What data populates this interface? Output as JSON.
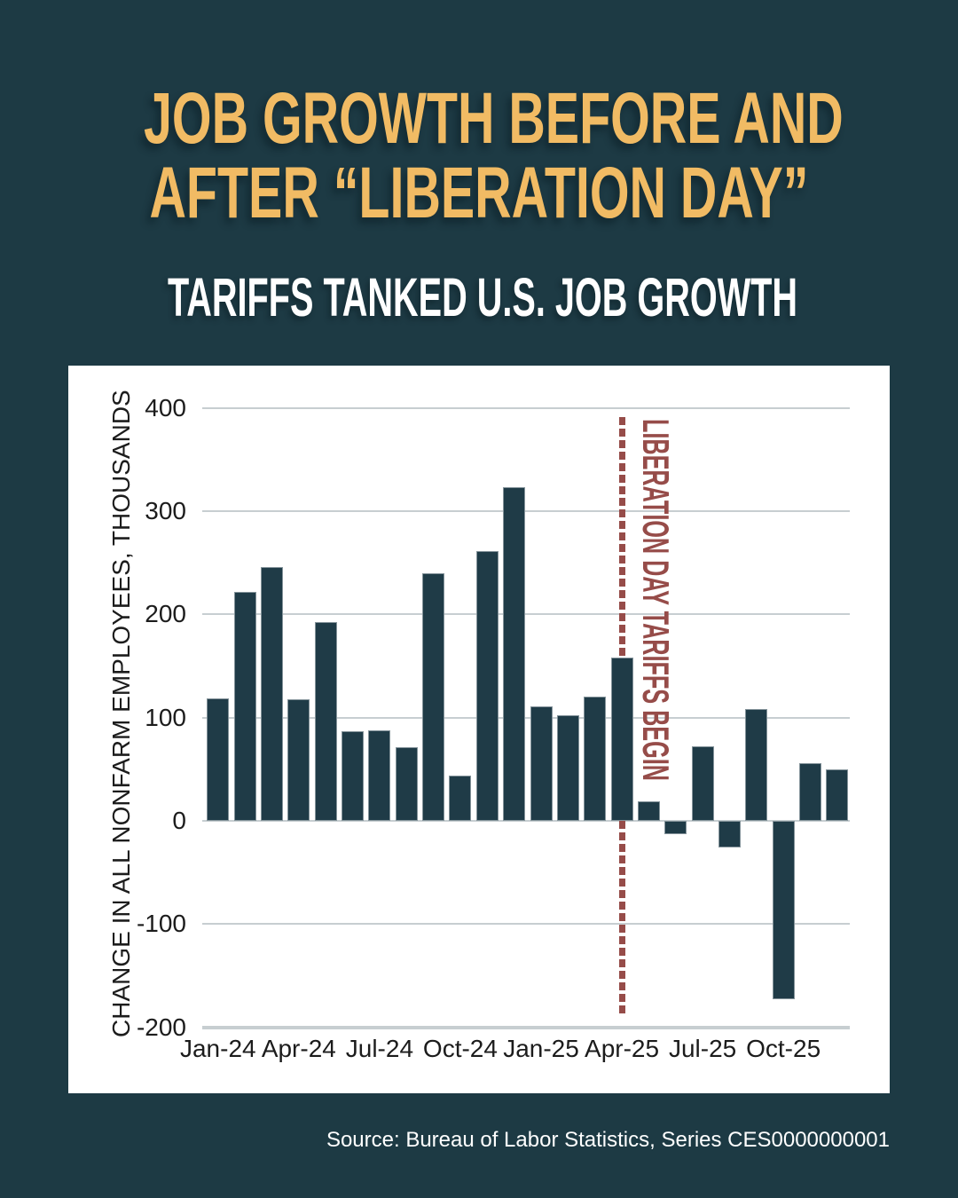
{
  "page": {
    "background": "#1d3a44",
    "accent_gold": "#f1bb64",
    "panel_color": "#ffffff",
    "ink_color": "#1c1c1c",
    "gridline_color": "#c7ced1",
    "bar_color": "#1f3b47",
    "annotation_color": "#964c49"
  },
  "header": {
    "title_line1": "JOB GROWTH BEFORE AND",
    "title_line2": "AFTER “LIBERATION DAY”",
    "subtitle": "TARIFFS TANKED U.S. JOB GROWTH"
  },
  "footer": {
    "source": "Source: Bureau of Labor Statistics, Series CES0000000001"
  },
  "chart_data": {
    "type": "bar",
    "title": "JOB GROWTH BEFORE AND AFTER “LIBERATION DAY”",
    "subtitle": "TARIFFS TANKED U.S. JOB GROWTH",
    "ylabel": "CHANGE IN ALL NONFARM EMPLOYEES, THOUSANDS",
    "xlabel": "",
    "categories": [
      "Jan-24",
      "Feb-24",
      "Mar-24",
      "Apr-24",
      "May-24",
      "Jun-24",
      "Jul-24",
      "Aug-24",
      "Sep-24",
      "Oct-24",
      "Nov-24",
      "Dec-24",
      "Jan-25",
      "Feb-25",
      "Mar-25",
      "Apr-25",
      "May-25",
      "Jun-25",
      "Jul-25",
      "Aug-25",
      "Sep-25",
      "Oct-25",
      "Nov-25",
      "Dec-25"
    ],
    "values": [
      119,
      222,
      246,
      118,
      193,
      87,
      88,
      71,
      240,
      44,
      261,
      323,
      111,
      102,
      120,
      158,
      19,
      -13,
      72,
      -26,
      108,
      -173,
      56,
      50
    ],
    "x_tick_labels": [
      "Jan-24",
      "Apr-24",
      "Jul-24",
      "Oct-24",
      "Jan-25",
      "Apr-25",
      "Jul-25",
      "Oct-25"
    ],
    "x_tick_every": 3,
    "y_ticks": [
      400,
      300,
      200,
      100,
      0,
      -100,
      -200
    ],
    "ylim": [
      -200,
      400
    ],
    "grid": true,
    "legend": "none",
    "annotation": {
      "label": "LIBERATION DAY TARIFFS BEGIN",
      "at_category": "Apr-25",
      "line_style": "dashed",
      "color": "#964c49"
    }
  }
}
